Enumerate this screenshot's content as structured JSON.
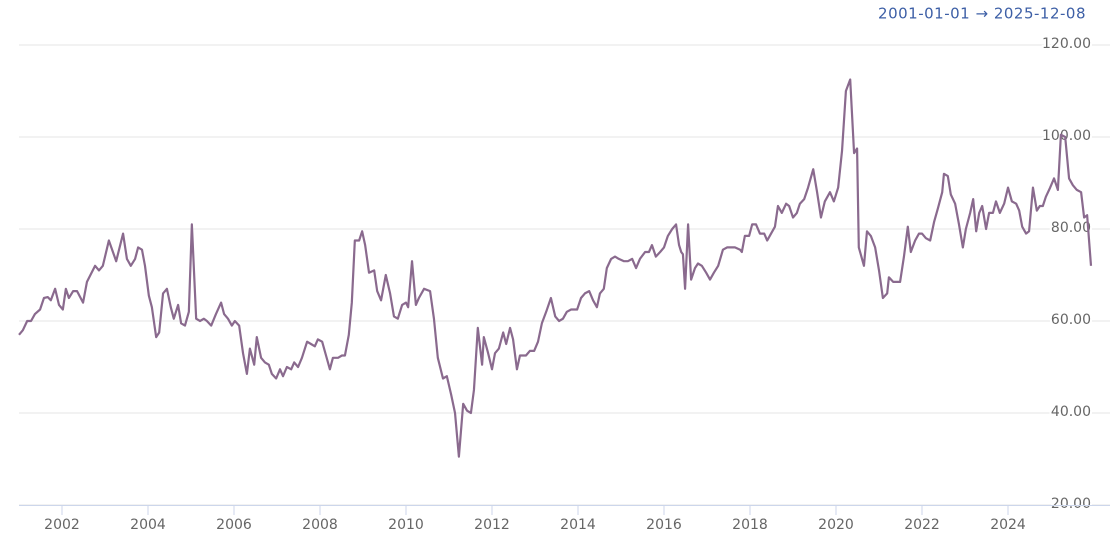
{
  "chart_data": {
    "type": "line",
    "subtitle": "2001-01-01  →  2025-12-08",
    "color": "#8a6a8e",
    "grid": true,
    "xlim": [
      2001,
      2025.93
    ],
    "xticks": [
      2002,
      2004,
      2006,
      2008,
      2010,
      2012,
      2014,
      2016,
      2018,
      2020,
      2022,
      2024
    ],
    "ylim": [
      20,
      120
    ],
    "yticks": [
      {
        "value": 20,
        "label": "20.00"
      },
      {
        "value": 40,
        "label": "40.00"
      },
      {
        "value": 60,
        "label": "60.00"
      },
      {
        "value": 80,
        "label": "80.00"
      },
      {
        "value": 100,
        "label": "100.00"
      },
      {
        "value": 120,
        "label": "120.00"
      }
    ],
    "x": [
      2001.0,
      2001.09,
      2001.19,
      2001.28,
      2001.37,
      2001.49,
      2001.58,
      2001.67,
      2001.74,
      2001.84,
      2001.93,
      2002.02,
      2002.09,
      2002.16,
      2002.26,
      2002.35,
      2002.49,
      2002.58,
      2002.77,
      2002.86,
      2002.95,
      2003.09,
      2003.26,
      2003.42,
      2003.51,
      2003.6,
      2003.7,
      2003.77,
      2003.86,
      2003.93,
      2004.02,
      2004.09,
      2004.19,
      2004.26,
      2004.35,
      2004.44,
      2004.53,
      2004.6,
      2004.7,
      2004.77,
      2004.86,
      2004.95,
      2005.02,
      2005.12,
      2005.21,
      2005.3,
      2005.37,
      2005.47,
      2005.58,
      2005.7,
      2005.77,
      2005.86,
      2005.95,
      2006.02,
      2006.12,
      2006.21,
      2006.3,
      2006.37,
      2006.47,
      2006.53,
      2006.63,
      2006.72,
      2006.81,
      2006.88,
      2006.98,
      2007.07,
      2007.14,
      2007.23,
      2007.33,
      2007.4,
      2007.49,
      2007.58,
      2007.7,
      2007.79,
      2007.88,
      2007.95,
      2008.05,
      2008.14,
      2008.23,
      2008.3,
      2008.42,
      2008.51,
      2008.58,
      2008.67,
      2008.74,
      2008.81,
      2008.91,
      2008.98,
      2009.05,
      2009.14,
      2009.26,
      2009.33,
      2009.42,
      2009.53,
      2009.63,
      2009.72,
      2009.81,
      2009.91,
      2010.0,
      2010.05,
      2010.14,
      2010.23,
      2010.3,
      2010.42,
      2010.56,
      2010.65,
      2010.74,
      2010.86,
      2010.95,
      2011.05,
      2011.14,
      2011.23,
      2011.33,
      2011.42,
      2011.51,
      2011.58,
      2011.67,
      2011.77,
      2011.81,
      2011.91,
      2012.0,
      2012.07,
      2012.16,
      2012.26,
      2012.33,
      2012.42,
      2012.49,
      2012.58,
      2012.65,
      2012.79,
      2012.88,
      2012.98,
      2013.07,
      2013.16,
      2013.26,
      2013.37,
      2013.47,
      2013.56,
      2013.65,
      2013.74,
      2013.84,
      2013.98,
      2014.07,
      2014.16,
      2014.26,
      2014.35,
      2014.44,
      2014.51,
      2014.6,
      2014.67,
      2014.77,
      2014.86,
      2014.95,
      2015.07,
      2015.16,
      2015.26,
      2015.35,
      2015.44,
      2015.56,
      2015.65,
      2015.72,
      2015.81,
      2015.91,
      2016.0,
      2016.09,
      2016.19,
      2016.28,
      2016.35,
      2016.4,
      2016.44,
      2016.49,
      2016.56,
      2016.63,
      2016.72,
      2016.79,
      2016.88,
      2016.98,
      2017.07,
      2017.16,
      2017.26,
      2017.37,
      2017.47,
      2017.56,
      2017.65,
      2017.77,
      2017.81,
      2017.88,
      2017.98,
      2018.05,
      2018.14,
      2018.23,
      2018.33,
      2018.4,
      2018.49,
      2018.58,
      2018.65,
      2018.74,
      2018.84,
      2018.91,
      2019.0,
      2019.09,
      2019.16,
      2019.26,
      2019.35,
      2019.47,
      2019.56,
      2019.65,
      2019.74,
      2019.86,
      2019.95,
      2020.05,
      2020.14,
      2020.23,
      2020.33,
      2020.42,
      2020.49,
      2020.53,
      2020.65,
      2020.72,
      2020.81,
      2020.91,
      2021.0,
      2021.09,
      2021.19,
      2021.23,
      2021.33,
      2021.42,
      2021.49,
      2021.58,
      2021.67,
      2021.74,
      2021.84,
      2021.93,
      2022.0,
      2022.09,
      2022.19,
      2022.28,
      2022.37,
      2022.47,
      2022.51,
      2022.6,
      2022.67,
      2022.77,
      2022.86,
      2022.95,
      2023.02,
      2023.12,
      2023.19,
      2023.26,
      2023.33,
      2023.4,
      2023.49,
      2023.56,
      2023.65,
      2023.72,
      2023.81,
      2023.91,
      2024.0,
      2024.09,
      2024.19,
      2024.26,
      2024.33,
      2024.42,
      2024.49,
      2024.58,
      2024.67,
      2024.74,
      2024.81,
      2024.88,
      2024.98,
      2025.07,
      2025.16,
      2025.23,
      2025.33,
      2025.42,
      2025.51,
      2025.6,
      2025.7,
      2025.77,
      2025.84,
      2025.93
    ],
    "values": [
      57,
      58,
      60,
      60,
      61.5,
      62.5,
      65,
      65.2,
      64.5,
      67,
      63.5,
      62.5,
      67,
      65,
      66.5,
      66.5,
      64,
      68.5,
      72,
      71,
      72,
      77.5,
      73,
      79,
      73.5,
      72,
      73.5,
      76,
      75.5,
      72,
      65.5,
      63,
      56.5,
      57.5,
      66,
      67,
      63,
      60.5,
      63.5,
      59.5,
      59,
      62,
      81,
      60.5,
      60,
      60.5,
      60,
      59,
      61.5,
      64,
      61.5,
      60.5,
      59,
      60,
      59,
      53,
      48.5,
      54,
      50.5,
      56.5,
      52,
      51,
      50.5,
      48.5,
      47.5,
      49.5,
      48,
      50,
      49.5,
      51,
      50,
      52,
      55.5,
      55,
      54.5,
      56,
      55.5,
      52.5,
      49.5,
      52,
      52,
      52.5,
      52.5,
      57,
      64,
      77.5,
      77.5,
      79.5,
      76.5,
      70.5,
      71,
      66.5,
      64.5,
      70,
      66,
      61,
      60.5,
      63.5,
      64,
      63,
      73,
      63.5,
      65,
      67,
      66.5,
      60.5,
      52,
      47.5,
      48,
      44,
      40,
      30.5,
      42,
      40.5,
      40,
      45,
      58.5,
      50.5,
      56.5,
      53,
      49.5,
      53,
      54,
      57.5,
      55,
      58.5,
      56,
      49.5,
      52.5,
      52.5,
      53.5,
      53.5,
      55.5,
      59.5,
      62,
      65,
      61,
      60,
      60.5,
      62,
      62.5,
      62.5,
      65,
      66,
      66.5,
      64.5,
      63,
      66,
      67,
      71.5,
      73.5,
      74,
      73.5,
      73,
      73,
      73.5,
      71.5,
      73.5,
      75,
      75,
      76.5,
      74,
      75,
      76,
      78.5,
      80,
      81,
      76.5,
      75,
      74.5,
      67,
      81,
      69,
      71.5,
      72.5,
      72,
      70.5,
      69,
      70.5,
      72,
      75.5,
      76,
      76,
      76,
      75.5,
      75,
      78.5,
      78.5,
      81,
      81,
      79,
      79,
      77.5,
      79,
      80.5,
      85,
      83.5,
      85.5,
      85,
      82.5,
      83.5,
      85.5,
      86.5,
      89,
      93,
      88,
      82.5,
      86,
      88,
      86,
      89,
      97,
      110,
      112.5,
      96.5,
      97.5,
      76,
      72,
      79.5,
      78.5,
      76,
      71,
      65,
      66,
      69.5,
      68.5,
      68.5,
      68.5,
      74,
      80.5,
      75,
      77.5,
      79,
      79,
      78,
      77.5,
      81.5,
      84.5,
      88,
      92,
      91.5,
      87.5,
      85.5,
      81,
      76,
      80,
      83.5,
      86.5,
      79.5,
      83.5,
      85,
      80,
      83.5,
      83.5,
      86,
      83.5,
      85.5,
      89,
      86,
      85.5,
      84,
      80.5,
      79,
      79.5,
      89,
      84,
      85,
      85,
      87,
      89,
      91,
      88.5,
      100.5,
      100,
      91,
      89.5,
      88.5,
      88,
      82.5,
      83,
      72
    ]
  }
}
